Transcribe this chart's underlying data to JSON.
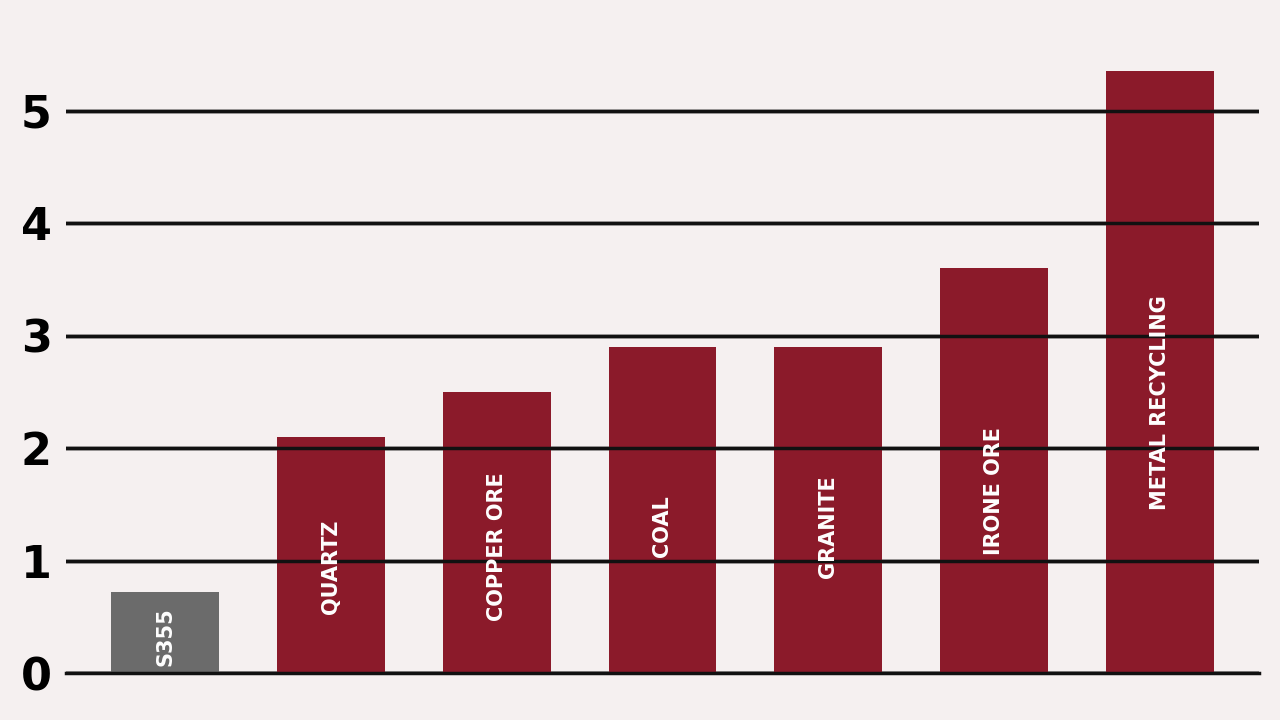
{
  "categories": [
    "S355",
    "QUARTZ",
    "COPPER ORE",
    "COAL",
    "GRANITE",
    "IRONE ORE",
    "METAL RECYCLING"
  ],
  "values": [
    0.72,
    2.1,
    2.5,
    2.9,
    2.9,
    3.6,
    5.35
  ],
  "bar_colors": [
    "#6b6b6b",
    "#8b1a2a",
    "#8b1a2a",
    "#8b1a2a",
    "#8b1a2a",
    "#8b1a2a",
    "#8b1a2a"
  ],
  "background_color": "#f5f0f0",
  "ylim": [
    0,
    5.8
  ],
  "yticks": [
    0,
    1,
    2,
    3,
    4,
    5
  ],
  "grid_color": "#111111",
  "label_color": "#ffffff",
  "label_fontsize": 15,
  "tick_fontsize": 32,
  "bar_width": 0.65
}
